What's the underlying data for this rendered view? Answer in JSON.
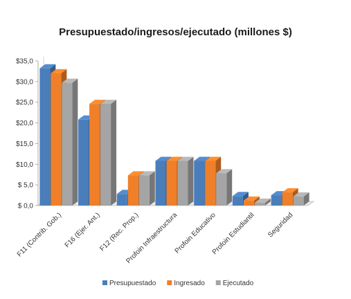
{
  "chart_data": {
    "type": "bar",
    "title": "Presupuestado/ingresos/ejecutado (millones $)",
    "xlabel": "",
    "ylabel": "",
    "ylim": [
      0,
      35
    ],
    "yticks": [
      "$ 0,0",
      "$ 5,0",
      "$10,0",
      "$15,0",
      "$20,0",
      "$25,0",
      "$30,0",
      "$35,0"
    ],
    "categories": [
      "F11 (Contrib. Gob.)",
      "F16 (Ejer. Ant.)",
      "F12 (Rec. Prop.)",
      "Profoin Infraestructura",
      "Profoin Educativo",
      "Profoin Estudiantil",
      "Seguridad"
    ],
    "series": [
      {
        "name": "Presupuestado",
        "color": "#4a7ebb",
        "values": [
          33.2,
          20.8,
          2.8,
          10.8,
          10.8,
          2.3,
          2.5
        ]
      },
      {
        "name": "Ingresado",
        "color": "#f07f2a",
        "values": [
          32.0,
          24.6,
          7.3,
          10.8,
          10.8,
          1.2,
          3.2
        ]
      },
      {
        "name": "Ejecutado",
        "color": "#a5a5a5",
        "values": [
          29.7,
          24.6,
          7.3,
          10.8,
          7.8,
          0.7,
          2.2
        ]
      }
    ],
    "grid": false,
    "legend_position": "bottom"
  }
}
